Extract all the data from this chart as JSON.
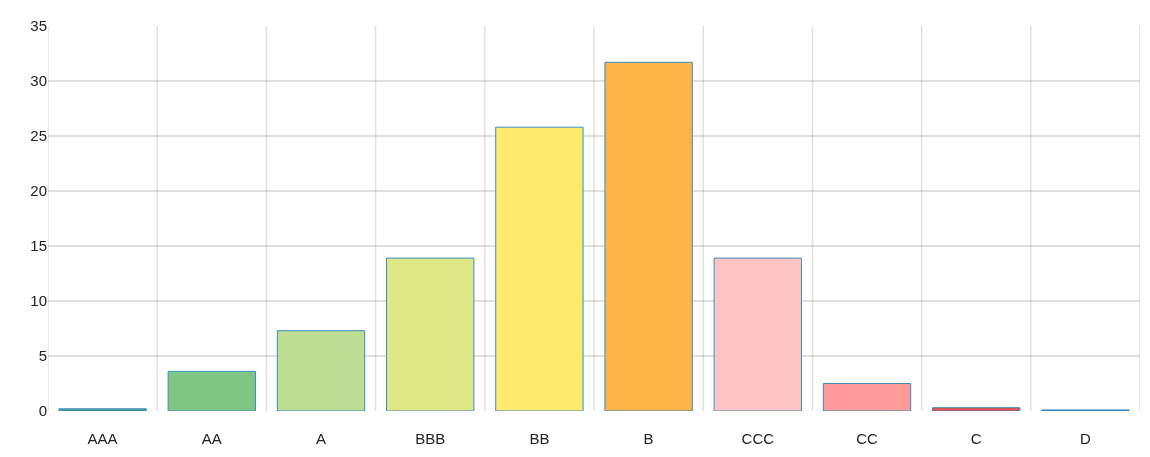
{
  "chart_data": {
    "type": "bar",
    "categories": [
      "AAA",
      "AA",
      "A",
      "BBB",
      "BB",
      "B",
      "CCC",
      "CC",
      "C",
      "D"
    ],
    "values": [
      0.2,
      3.6,
      7.3,
      13.9,
      25.8,
      31.7,
      13.9,
      2.5,
      0.3,
      0.1
    ],
    "colors": [
      "#4a9a8a",
      "#80c584",
      "#bddc94",
      "#e0e787",
      "#feea6e",
      "#ffb44a",
      "#ffc3c4",
      "#ff9a9a",
      "#ee4c4c",
      "#2e86c1"
    ],
    "ylim": [
      0,
      35
    ],
    "yticks": [
      0,
      5,
      10,
      15,
      20,
      25,
      30,
      35
    ],
    "grid": true
  }
}
